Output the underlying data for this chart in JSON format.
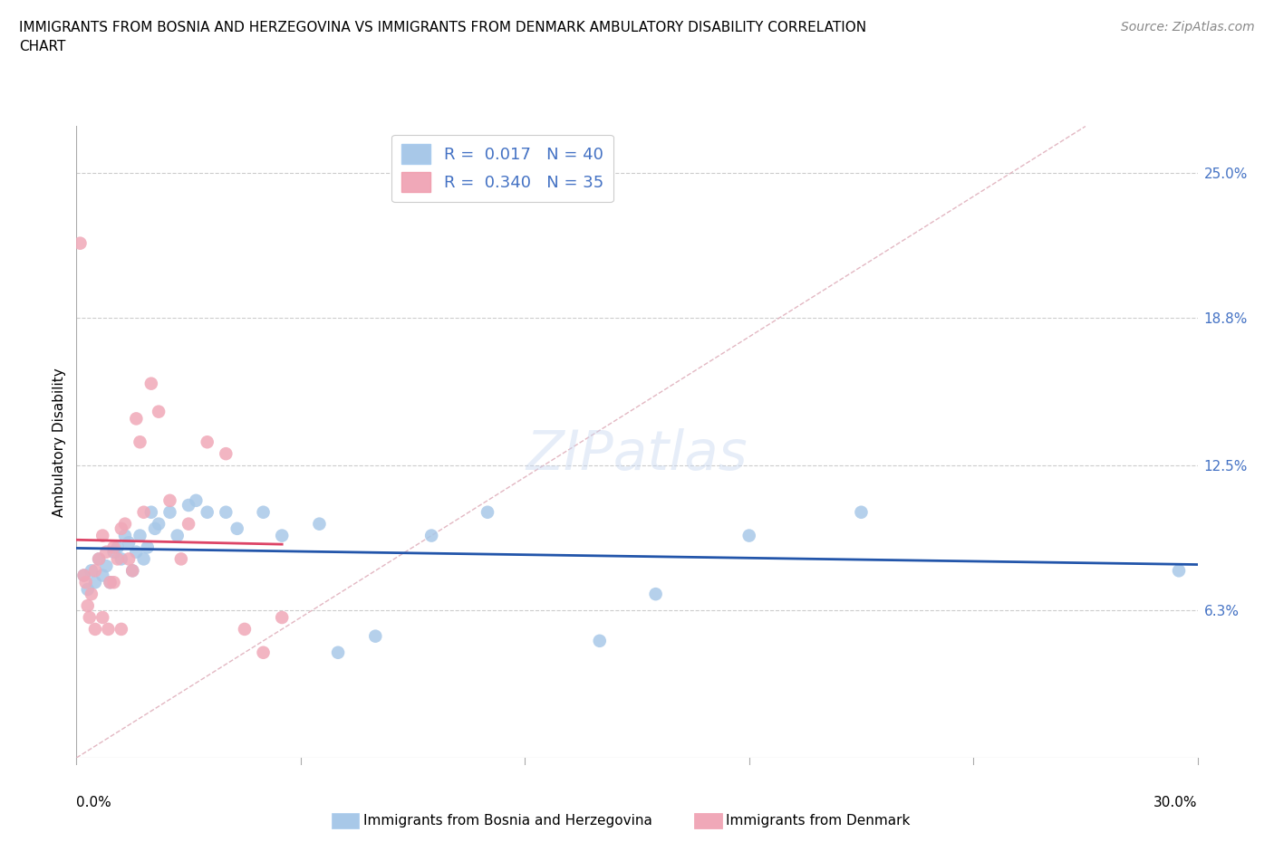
{
  "title": "IMMIGRANTS FROM BOSNIA AND HERZEGOVINA VS IMMIGRANTS FROM DENMARK AMBULATORY DISABILITY CORRELATION\nCHART",
  "source": "Source: ZipAtlas.com",
  "ylabel": "Ambulatory Disability",
  "ytick_values": [
    6.3,
    12.5,
    18.8,
    25.0
  ],
  "ytick_labels": [
    "6.3%",
    "12.5%",
    "18.8%",
    "25.0%"
  ],
  "xlim": [
    0.0,
    30.0
  ],
  "ylim": [
    0.0,
    27.0
  ],
  "ymin_data": 0.0,
  "R_bosnia": 0.017,
  "N_bosnia": 40,
  "R_denmark": 0.34,
  "N_denmark": 35,
  "color_bosnia": "#a8c8e8",
  "color_denmark": "#f0a8b8",
  "line_color_bosnia": "#2255aa",
  "line_color_denmark": "#dd4466",
  "diag_color": "#e0b0c0",
  "bosnia_x": [
    0.2,
    0.3,
    0.4,
    0.5,
    0.6,
    0.7,
    0.8,
    0.9,
    1.0,
    1.1,
    1.2,
    1.3,
    1.4,
    1.5,
    1.6,
    1.7,
    1.8,
    1.9,
    2.0,
    2.1,
    2.2,
    2.5,
    2.7,
    3.0,
    3.2,
    3.5,
    4.0,
    4.3,
    5.0,
    5.5,
    6.5,
    7.0,
    8.0,
    9.5,
    11.0,
    14.0,
    15.5,
    18.0,
    21.0,
    29.5
  ],
  "bosnia_y": [
    7.8,
    7.2,
    8.0,
    7.5,
    8.5,
    7.8,
    8.2,
    7.5,
    8.8,
    9.0,
    8.5,
    9.5,
    9.2,
    8.0,
    8.8,
    9.5,
    8.5,
    9.0,
    10.5,
    9.8,
    10.0,
    10.5,
    9.5,
    10.8,
    11.0,
    10.5,
    10.5,
    9.8,
    10.5,
    9.5,
    10.0,
    4.5,
    5.2,
    9.5,
    10.5,
    5.0,
    7.0,
    9.5,
    10.5,
    8.0
  ],
  "denmark_x": [
    0.2,
    0.3,
    0.4,
    0.5,
    0.6,
    0.7,
    0.8,
    0.9,
    1.0,
    1.1,
    1.2,
    1.3,
    1.4,
    1.5,
    1.6,
    1.7,
    1.8,
    2.0,
    2.2,
    2.5,
    2.8,
    3.0,
    3.5,
    4.0,
    4.5,
    5.0,
    5.5,
    0.1,
    0.25,
    0.35,
    0.5,
    0.7,
    0.85,
    1.0,
    1.2
  ],
  "denmark_y": [
    7.8,
    6.5,
    7.0,
    8.0,
    8.5,
    9.5,
    8.8,
    7.5,
    9.0,
    8.5,
    9.8,
    10.0,
    8.5,
    8.0,
    14.5,
    13.5,
    10.5,
    16.0,
    14.8,
    11.0,
    8.5,
    10.0,
    13.5,
    13.0,
    5.5,
    4.5,
    6.0,
    22.0,
    7.5,
    6.0,
    5.5,
    6.0,
    5.5,
    7.5,
    5.5
  ],
  "watermark": "ZIPatlas",
  "legend_R_color": "#4472c4"
}
